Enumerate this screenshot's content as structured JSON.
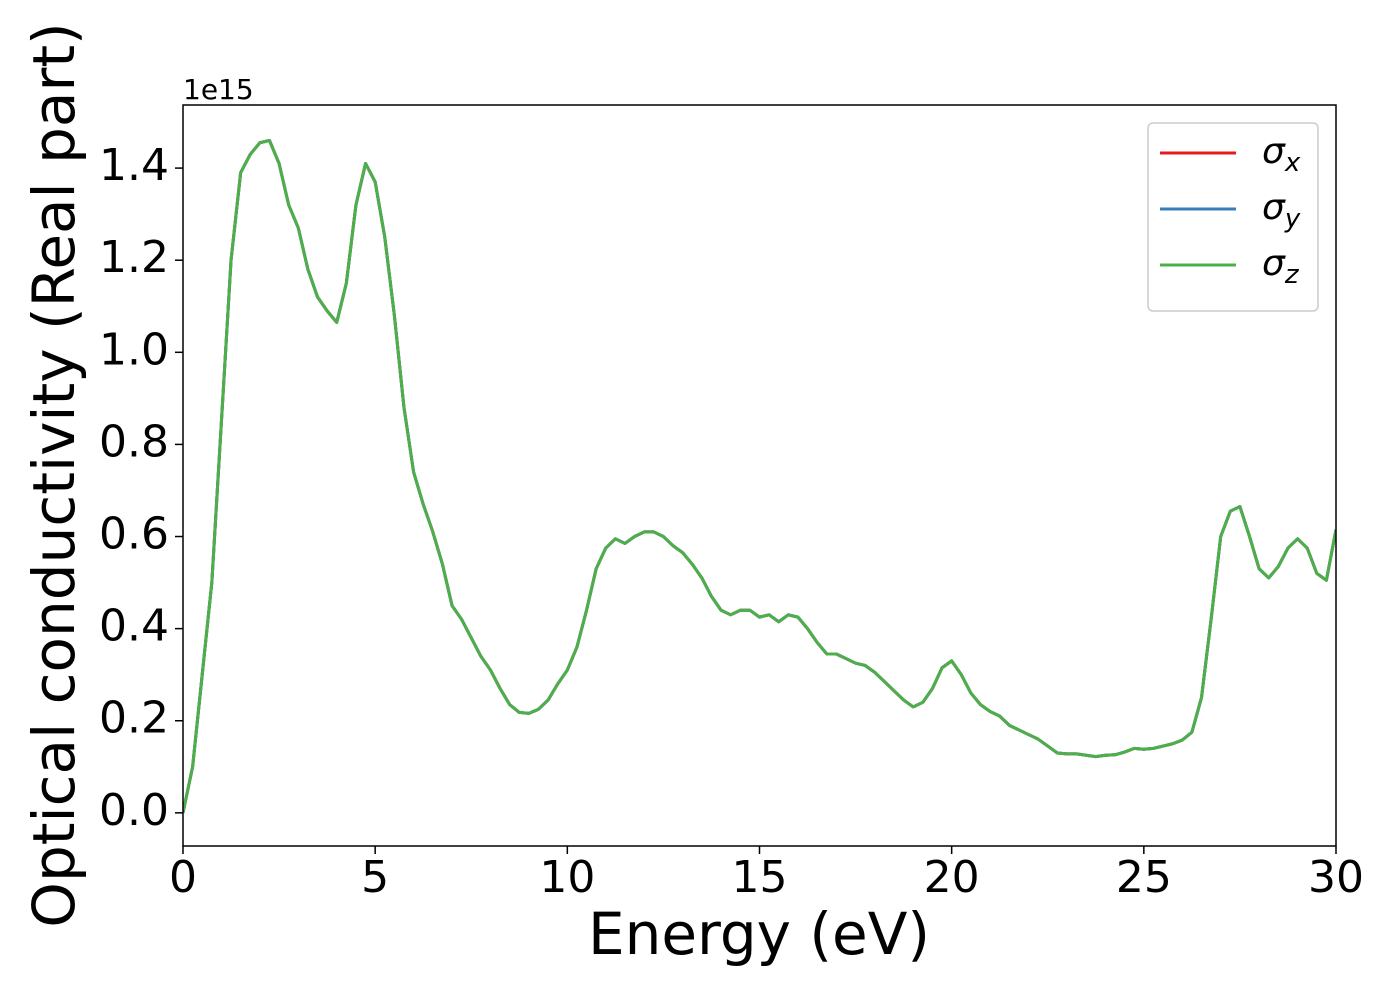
{
  "chart_data": {
    "type": "line",
    "xlabel": "Energy (eV)",
    "ylabel": "Optical conductivity (Real part)",
    "y_offset_label": "1e15",
    "xlim": [
      0,
      30
    ],
    "ylim": [
      -0.072,
      1.537
    ],
    "xticks": [
      0,
      5,
      10,
      15,
      20,
      25,
      30
    ],
    "yticks": [
      {
        "value": 0,
        "label": "0.0"
      },
      {
        "value": 0.2,
        "label": "0.2"
      },
      {
        "value": 0.4,
        "label": "0.4"
      },
      {
        "value": 0.6,
        "label": "0.6"
      },
      {
        "value": 0.8,
        "label": "0.8"
      },
      {
        "value": 1.0,
        "label": "1.0"
      },
      {
        "value": 1.2,
        "label": "1.2"
      },
      {
        "value": 1.4,
        "label": "1.4"
      }
    ],
    "grid": false,
    "legend": "upper right",
    "x": [
      0,
      0.25,
      0.5,
      0.75,
      1,
      1.25,
      1.5,
      1.75,
      2,
      2.25,
      2.5,
      2.75,
      3,
      3.25,
      3.5,
      3.75,
      4,
      4.25,
      4.5,
      4.75,
      5,
      5.25,
      5.5,
      5.75,
      6,
      6.25,
      6.5,
      6.75,
      7,
      7.25,
      7.5,
      7.75,
      8,
      8.25,
      8.5,
      8.75,
      9,
      9.25,
      9.5,
      9.75,
      10,
      10.25,
      10.5,
      10.75,
      11,
      11.25,
      11.5,
      11.75,
      12,
      12.25,
      12.5,
      12.75,
      13,
      13.25,
      13.5,
      13.75,
      14,
      14.25,
      14.5,
      14.75,
      15,
      15.25,
      15.5,
      15.75,
      16,
      16.25,
      16.5,
      16.75,
      17,
      17.25,
      17.5,
      17.75,
      18,
      18.25,
      18.5,
      18.75,
      19,
      19.25,
      19.5,
      19.75,
      20,
      20.25,
      20.5,
      20.75,
      21,
      21.25,
      21.5,
      21.75,
      22,
      22.25,
      22.5,
      22.75,
      23,
      23.25,
      23.5,
      23.75,
      24,
      24.25,
      24.5,
      24.75,
      25,
      25.25,
      25.5,
      25.75,
      26,
      26.25,
      26.5,
      26.75,
      27,
      27.25,
      27.5,
      27.75,
      28,
      28.25,
      28.5,
      28.75,
      29,
      29.25,
      29.5,
      29.75,
      30
    ],
    "series": [
      {
        "name": "σx",
        "color": "#e41a1c",
        "values": [
          0,
          0.1,
          0.3,
          0.5,
          0.85,
          1.2,
          1.39,
          1.43,
          1.455,
          1.46,
          1.41,
          1.32,
          1.27,
          1.18,
          1.12,
          1.09,
          1.065,
          1.15,
          1.32,
          1.41,
          1.37,
          1.25,
          1.08,
          0.88,
          0.74,
          0.67,
          0.61,
          0.54,
          0.45,
          0.42,
          0.38,
          0.34,
          0.31,
          0.27,
          0.235,
          0.218,
          0.216,
          0.225,
          0.245,
          0.28,
          0.31,
          0.36,
          0.44,
          0.53,
          0.575,
          0.595,
          0.585,
          0.6,
          0.61,
          0.61,
          0.6,
          0.58,
          0.565,
          0.54,
          0.51,
          0.47,
          0.44,
          0.43,
          0.44,
          0.44,
          0.425,
          0.43,
          0.415,
          0.43,
          0.425,
          0.4,
          0.37,
          0.345,
          0.345,
          0.335,
          0.325,
          0.32,
          0.305,
          0.285,
          0.265,
          0.245,
          0.23,
          0.24,
          0.27,
          0.315,
          0.33,
          0.3,
          0.26,
          0.235,
          0.22,
          0.21,
          0.19,
          0.18,
          0.17,
          0.16,
          0.145,
          0.13,
          0.128,
          0.128,
          0.125,
          0.122,
          0.125,
          0.126,
          0.132,
          0.14,
          0.138,
          0.14,
          0.145,
          0.15,
          0.158,
          0.175,
          0.25,
          0.42,
          0.6,
          0.655,
          0.665,
          0.6,
          0.53,
          0.51,
          0.535,
          0.575,
          0.595,
          0.575,
          0.52,
          0.505,
          0.615
        ]
      },
      {
        "name": "σy",
        "color": "#377eb8",
        "values": [
          0,
          0.1,
          0.3,
          0.5,
          0.85,
          1.2,
          1.39,
          1.43,
          1.455,
          1.46,
          1.41,
          1.32,
          1.27,
          1.18,
          1.12,
          1.09,
          1.065,
          1.15,
          1.32,
          1.41,
          1.37,
          1.25,
          1.08,
          0.88,
          0.74,
          0.67,
          0.61,
          0.54,
          0.45,
          0.42,
          0.38,
          0.34,
          0.31,
          0.27,
          0.235,
          0.218,
          0.216,
          0.225,
          0.245,
          0.28,
          0.31,
          0.36,
          0.44,
          0.53,
          0.575,
          0.595,
          0.585,
          0.6,
          0.61,
          0.61,
          0.6,
          0.58,
          0.565,
          0.54,
          0.51,
          0.47,
          0.44,
          0.43,
          0.44,
          0.44,
          0.425,
          0.43,
          0.415,
          0.43,
          0.425,
          0.4,
          0.37,
          0.345,
          0.345,
          0.335,
          0.325,
          0.32,
          0.305,
          0.285,
          0.265,
          0.245,
          0.23,
          0.24,
          0.27,
          0.315,
          0.33,
          0.3,
          0.26,
          0.235,
          0.22,
          0.21,
          0.19,
          0.18,
          0.17,
          0.16,
          0.145,
          0.13,
          0.128,
          0.128,
          0.125,
          0.122,
          0.125,
          0.126,
          0.132,
          0.14,
          0.138,
          0.14,
          0.145,
          0.15,
          0.158,
          0.175,
          0.25,
          0.42,
          0.6,
          0.655,
          0.665,
          0.6,
          0.53,
          0.51,
          0.535,
          0.575,
          0.595,
          0.575,
          0.52,
          0.505,
          0.615
        ]
      },
      {
        "name": "σz",
        "color": "#4daf4a",
        "values": [
          0,
          0.1,
          0.3,
          0.5,
          0.85,
          1.2,
          1.39,
          1.43,
          1.455,
          1.46,
          1.41,
          1.32,
          1.27,
          1.18,
          1.12,
          1.09,
          1.065,
          1.15,
          1.32,
          1.41,
          1.37,
          1.25,
          1.08,
          0.88,
          0.74,
          0.67,
          0.61,
          0.54,
          0.45,
          0.42,
          0.38,
          0.34,
          0.31,
          0.27,
          0.235,
          0.218,
          0.216,
          0.225,
          0.245,
          0.28,
          0.31,
          0.36,
          0.44,
          0.53,
          0.575,
          0.595,
          0.585,
          0.6,
          0.61,
          0.61,
          0.6,
          0.58,
          0.565,
          0.54,
          0.51,
          0.47,
          0.44,
          0.43,
          0.44,
          0.44,
          0.425,
          0.43,
          0.415,
          0.43,
          0.425,
          0.4,
          0.37,
          0.345,
          0.345,
          0.335,
          0.325,
          0.32,
          0.305,
          0.285,
          0.265,
          0.245,
          0.23,
          0.24,
          0.27,
          0.315,
          0.33,
          0.3,
          0.26,
          0.235,
          0.22,
          0.21,
          0.19,
          0.18,
          0.17,
          0.16,
          0.145,
          0.13,
          0.128,
          0.128,
          0.125,
          0.122,
          0.125,
          0.126,
          0.132,
          0.14,
          0.138,
          0.14,
          0.145,
          0.15,
          0.158,
          0.175,
          0.25,
          0.42,
          0.6,
          0.655,
          0.665,
          0.6,
          0.53,
          0.51,
          0.535,
          0.575,
          0.595,
          0.575,
          0.52,
          0.505,
          0.615
        ]
      }
    ]
  }
}
